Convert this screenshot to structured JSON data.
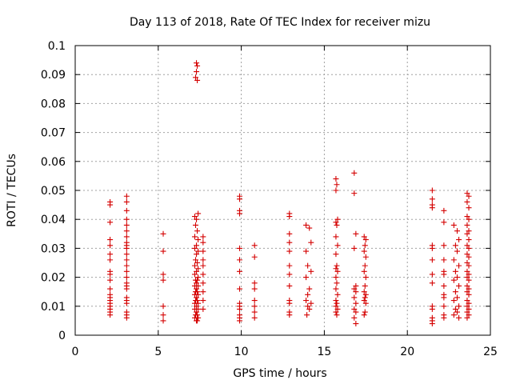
{
  "chart_data": {
    "type": "scatter",
    "title": "Day 113 of 2018, Rate Of TEC Index for receiver mizu",
    "xlabel": "GPS time / hours",
    "ylabel": "ROTI / TECUs",
    "xlim": [
      0,
      25
    ],
    "ylim": [
      0,
      0.1
    ],
    "xticks": [
      "0",
      "5",
      "10",
      "15",
      "20",
      "25"
    ],
    "yticks": [
      "0",
      "0.01",
      "0.02",
      "0.03",
      "0.04",
      "0.05",
      "0.06",
      "0.07",
      "0.08",
      "0.09",
      "0.1"
    ],
    "grid": true,
    "marker": "+",
    "series": [
      {
        "name": "ROTI",
        "color": "#d40000",
        "points": [
          [
            2.1,
            0.046
          ],
          [
            2.1,
            0.045
          ],
          [
            2.1,
            0.039
          ],
          [
            2.1,
            0.033
          ],
          [
            2.1,
            0.031
          ],
          [
            2.1,
            0.028
          ],
          [
            2.1,
            0.026
          ],
          [
            2.1,
            0.022
          ],
          [
            2.1,
            0.021
          ],
          [
            2.1,
            0.019
          ],
          [
            2.1,
            0.016
          ],
          [
            2.1,
            0.014
          ],
          [
            2.1,
            0.013
          ],
          [
            2.1,
            0.012
          ],
          [
            2.1,
            0.011
          ],
          [
            2.1,
            0.01
          ],
          [
            2.1,
            0.009
          ],
          [
            2.1,
            0.008
          ],
          [
            2.1,
            0.007
          ],
          [
            3.1,
            0.048
          ],
          [
            3.1,
            0.046
          ],
          [
            3.1,
            0.043
          ],
          [
            3.1,
            0.04
          ],
          [
            3.1,
            0.038
          ],
          [
            3.1,
            0.036
          ],
          [
            3.1,
            0.034
          ],
          [
            3.1,
            0.032
          ],
          [
            3.1,
            0.031
          ],
          [
            3.1,
            0.03
          ],
          [
            3.1,
            0.028
          ],
          [
            3.1,
            0.026
          ],
          [
            3.1,
            0.024
          ],
          [
            3.1,
            0.022
          ],
          [
            3.1,
            0.02
          ],
          [
            3.1,
            0.018
          ],
          [
            3.1,
            0.017
          ],
          [
            3.1,
            0.016
          ],
          [
            3.1,
            0.013
          ],
          [
            3.1,
            0.012
          ],
          [
            3.1,
            0.011
          ],
          [
            3.1,
            0.008
          ],
          [
            3.1,
            0.007
          ],
          [
            3.1,
            0.006
          ],
          [
            5.3,
            0.035
          ],
          [
            5.3,
            0.029
          ],
          [
            5.3,
            0.021
          ],
          [
            5.3,
            0.019
          ],
          [
            5.3,
            0.01
          ],
          [
            5.3,
            0.007
          ],
          [
            5.3,
            0.005
          ],
          [
            7.3,
            0.094
          ],
          [
            7.35,
            0.093
          ],
          [
            7.3,
            0.091
          ],
          [
            7.25,
            0.089
          ],
          [
            7.35,
            0.088
          ],
          [
            7.2,
            0.041
          ],
          [
            7.3,
            0.04
          ],
          [
            7.4,
            0.042
          ],
          [
            7.25,
            0.038
          ],
          [
            7.35,
            0.036
          ],
          [
            7.2,
            0.034
          ],
          [
            7.4,
            0.033
          ],
          [
            7.3,
            0.031
          ],
          [
            7.2,
            0.03
          ],
          [
            7.4,
            0.029
          ],
          [
            7.3,
            0.028
          ],
          [
            7.25,
            0.026
          ],
          [
            7.35,
            0.025
          ],
          [
            7.2,
            0.024
          ],
          [
            7.4,
            0.023
          ],
          [
            7.3,
            0.022
          ],
          [
            7.2,
            0.021
          ],
          [
            7.4,
            0.02
          ],
          [
            7.25,
            0.019
          ],
          [
            7.35,
            0.019
          ],
          [
            7.3,
            0.018
          ],
          [
            7.2,
            0.017
          ],
          [
            7.4,
            0.017
          ],
          [
            7.3,
            0.016
          ],
          [
            7.25,
            0.015
          ],
          [
            7.35,
            0.015
          ],
          [
            7.2,
            0.014
          ],
          [
            7.4,
            0.014
          ],
          [
            7.3,
            0.013
          ],
          [
            7.25,
            0.012
          ],
          [
            7.35,
            0.012
          ],
          [
            7.2,
            0.011
          ],
          [
            7.4,
            0.011
          ],
          [
            7.3,
            0.01
          ],
          [
            7.2,
            0.009
          ],
          [
            7.4,
            0.009
          ],
          [
            7.3,
            0.008
          ],
          [
            7.25,
            0.007
          ],
          [
            7.35,
            0.007
          ],
          [
            7.2,
            0.006
          ],
          [
            7.4,
            0.006
          ],
          [
            7.3,
            0.005
          ],
          [
            7.35,
            0.005
          ],
          [
            7.7,
            0.034
          ],
          [
            7.7,
            0.032
          ],
          [
            7.7,
            0.029
          ],
          [
            7.7,
            0.026
          ],
          [
            7.7,
            0.024
          ],
          [
            7.7,
            0.021
          ],
          [
            7.7,
            0.018
          ],
          [
            7.7,
            0.015
          ],
          [
            7.7,
            0.012
          ],
          [
            7.7,
            0.009
          ],
          [
            9.9,
            0.048
          ],
          [
            9.9,
            0.047
          ],
          [
            9.9,
            0.043
          ],
          [
            9.9,
            0.042
          ],
          [
            9.9,
            0.03
          ],
          [
            9.9,
            0.026
          ],
          [
            9.9,
            0.022
          ],
          [
            9.9,
            0.016
          ],
          [
            9.9,
            0.011
          ],
          [
            9.9,
            0.01
          ],
          [
            9.9,
            0.009
          ],
          [
            9.9,
            0.007
          ],
          [
            9.9,
            0.006
          ],
          [
            9.9,
            0.005
          ],
          [
            10.8,
            0.031
          ],
          [
            10.8,
            0.027
          ],
          [
            10.8,
            0.018
          ],
          [
            10.8,
            0.016
          ],
          [
            10.8,
            0.012
          ],
          [
            10.8,
            0.01
          ],
          [
            10.8,
            0.008
          ],
          [
            10.8,
            0.006
          ],
          [
            12.9,
            0.042
          ],
          [
            12.9,
            0.041
          ],
          [
            12.9,
            0.035
          ],
          [
            12.9,
            0.032
          ],
          [
            12.9,
            0.029
          ],
          [
            12.9,
            0.024
          ],
          [
            12.9,
            0.021
          ],
          [
            12.9,
            0.017
          ],
          [
            12.9,
            0.012
          ],
          [
            12.9,
            0.011
          ],
          [
            12.9,
            0.008
          ],
          [
            12.9,
            0.007
          ],
          [
            13.9,
            0.038
          ],
          [
            14.1,
            0.037
          ],
          [
            14.2,
            0.032
          ],
          [
            13.9,
            0.029
          ],
          [
            14.0,
            0.024
          ],
          [
            14.2,
            0.022
          ],
          [
            13.9,
            0.02
          ],
          [
            14.1,
            0.016
          ],
          [
            14.0,
            0.014
          ],
          [
            13.9,
            0.012
          ],
          [
            14.2,
            0.011
          ],
          [
            14.0,
            0.01
          ],
          [
            14.1,
            0.009
          ],
          [
            13.95,
            0.007
          ],
          [
            15.7,
            0.054
          ],
          [
            15.75,
            0.052
          ],
          [
            15.7,
            0.05
          ],
          [
            15.8,
            0.04
          ],
          [
            15.7,
            0.039
          ],
          [
            15.75,
            0.038
          ],
          [
            15.7,
            0.034
          ],
          [
            15.8,
            0.031
          ],
          [
            15.7,
            0.028
          ],
          [
            15.75,
            0.024
          ],
          [
            15.7,
            0.023
          ],
          [
            15.8,
            0.022
          ],
          [
            15.7,
            0.02
          ],
          [
            15.75,
            0.018
          ],
          [
            15.7,
            0.016
          ],
          [
            15.8,
            0.014
          ],
          [
            15.7,
            0.012
          ],
          [
            15.75,
            0.011
          ],
          [
            15.7,
            0.01
          ],
          [
            15.8,
            0.009
          ],
          [
            15.7,
            0.008
          ],
          [
            15.75,
            0.007
          ],
          [
            16.8,
            0.056
          ],
          [
            16.8,
            0.049
          ],
          [
            16.9,
            0.035
          ],
          [
            16.8,
            0.03
          ],
          [
            16.9,
            0.017
          ],
          [
            16.8,
            0.016
          ],
          [
            16.9,
            0.015
          ],
          [
            16.8,
            0.013
          ],
          [
            16.9,
            0.011
          ],
          [
            16.8,
            0.009
          ],
          [
            16.9,
            0.008
          ],
          [
            16.8,
            0.006
          ],
          [
            16.9,
            0.004
          ],
          [
            17.4,
            0.034
          ],
          [
            17.5,
            0.033
          ],
          [
            17.45,
            0.031
          ],
          [
            17.4,
            0.029
          ],
          [
            17.5,
            0.027
          ],
          [
            17.45,
            0.024
          ],
          [
            17.4,
            0.022
          ],
          [
            17.5,
            0.02
          ],
          [
            17.45,
            0.017
          ],
          [
            17.4,
            0.015
          ],
          [
            17.5,
            0.014
          ],
          [
            17.45,
            0.013
          ],
          [
            17.4,
            0.012
          ],
          [
            17.5,
            0.011
          ],
          [
            17.45,
            0.008
          ],
          [
            17.4,
            0.007
          ],
          [
            21.5,
            0.05
          ],
          [
            21.5,
            0.047
          ],
          [
            21.5,
            0.045
          ],
          [
            21.5,
            0.044
          ],
          [
            21.5,
            0.031
          ],
          [
            21.5,
            0.03
          ],
          [
            21.5,
            0.026
          ],
          [
            21.5,
            0.021
          ],
          [
            21.5,
            0.018
          ],
          [
            21.5,
            0.01
          ],
          [
            21.5,
            0.009
          ],
          [
            21.5,
            0.006
          ],
          [
            21.5,
            0.005
          ],
          [
            21.5,
            0.004
          ],
          [
            22.2,
            0.043
          ],
          [
            22.2,
            0.039
          ],
          [
            22.2,
            0.031
          ],
          [
            22.2,
            0.026
          ],
          [
            22.2,
            0.022
          ],
          [
            22.2,
            0.021
          ],
          [
            22.2,
            0.017
          ],
          [
            22.2,
            0.014
          ],
          [
            22.2,
            0.013
          ],
          [
            22.2,
            0.01
          ],
          [
            22.2,
            0.007
          ],
          [
            22.2,
            0.006
          ],
          [
            22.8,
            0.038
          ],
          [
            23.0,
            0.036
          ],
          [
            23.1,
            0.033
          ],
          [
            22.9,
            0.031
          ],
          [
            23.0,
            0.029
          ],
          [
            22.8,
            0.026
          ],
          [
            23.1,
            0.024
          ],
          [
            22.9,
            0.022
          ],
          [
            23.0,
            0.02
          ],
          [
            22.8,
            0.019
          ],
          [
            23.1,
            0.017
          ],
          [
            22.9,
            0.015
          ],
          [
            23.0,
            0.013
          ],
          [
            22.8,
            0.012
          ],
          [
            23.1,
            0.01
          ],
          [
            22.9,
            0.009
          ],
          [
            23.0,
            0.008
          ],
          [
            22.8,
            0.007
          ],
          [
            23.1,
            0.006
          ],
          [
            23.6,
            0.049
          ],
          [
            23.7,
            0.048
          ],
          [
            23.6,
            0.046
          ],
          [
            23.7,
            0.044
          ],
          [
            23.6,
            0.041
          ],
          [
            23.7,
            0.04
          ],
          [
            23.6,
            0.038
          ],
          [
            23.7,
            0.036
          ],
          [
            23.6,
            0.035
          ],
          [
            23.7,
            0.033
          ],
          [
            23.6,
            0.031
          ],
          [
            23.7,
            0.03
          ],
          [
            23.6,
            0.028
          ],
          [
            23.7,
            0.027
          ],
          [
            23.6,
            0.025
          ],
          [
            23.7,
            0.024
          ],
          [
            23.6,
            0.022
          ],
          [
            23.7,
            0.021
          ],
          [
            23.6,
            0.02
          ],
          [
            23.7,
            0.019
          ],
          [
            23.6,
            0.017
          ],
          [
            23.7,
            0.016
          ],
          [
            23.6,
            0.015
          ],
          [
            23.7,
            0.014
          ],
          [
            23.6,
            0.012
          ],
          [
            23.7,
            0.011
          ],
          [
            23.6,
            0.01
          ],
          [
            23.7,
            0.009
          ],
          [
            23.6,
            0.008
          ],
          [
            23.7,
            0.007
          ],
          [
            23.6,
            0.006
          ]
        ]
      }
    ]
  }
}
